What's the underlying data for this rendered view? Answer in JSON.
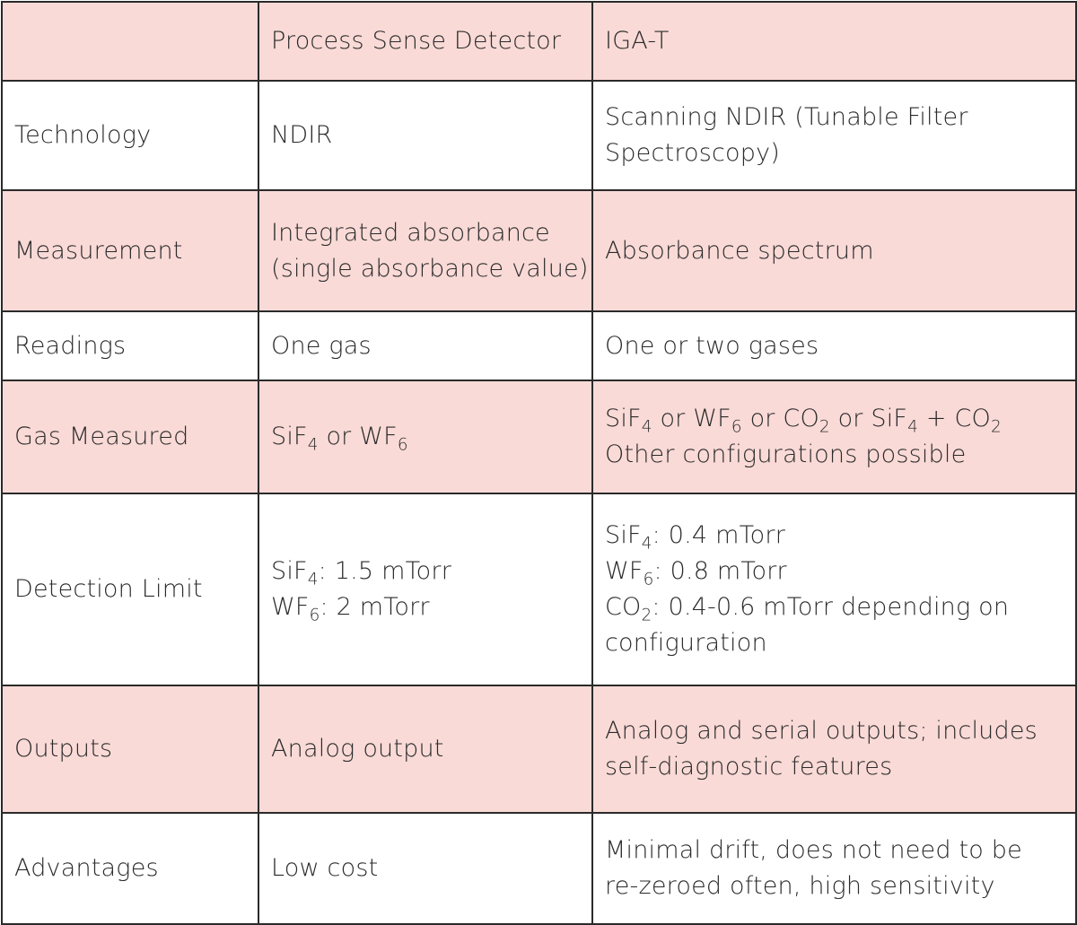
{
  "table": {
    "header": {
      "col1": "",
      "col2": "Process Sense Detector",
      "col3": "IGA-T"
    },
    "technology": {
      "label": "Technology",
      "psd": "NDIR",
      "igat_line1": "Scanning NDIR (Tunable Filter",
      "igat_line2": "Spectroscopy)"
    },
    "measurement": {
      "label": "Measurement",
      "psd_line1": "Integrated absorbance",
      "psd_line2": "(single absorbance value)",
      "igat": "Absorbance spectrum"
    },
    "readings": {
      "label": "Readings",
      "psd": "One gas",
      "igat": "One or two gases"
    },
    "gas_measured": {
      "label": "Gas Measured",
      "psd": {
        "g1": "SiF",
        "g1_sub": "4",
        "sep": " or ",
        "g2": "WF",
        "g2_sub": "6"
      },
      "igat": {
        "g1": "SiF",
        "g1_sub": "4",
        "sep1": " or ",
        "g2": "WF",
        "g2_sub": "6",
        "sep2": " or ",
        "g3": "CO",
        "g3_sub": "2",
        "sep3": " or ",
        "g4": "SiF",
        "g4_sub": "4",
        "sep4": " + ",
        "g5": "CO",
        "g5_sub": "2",
        "line2": "Other configurations possible"
      }
    },
    "detection_limit": {
      "label": "Detection Limit",
      "psd": {
        "l1_gas": "SiF",
        "l1_sub": "4",
        "l1_val": ": 1.5 mTorr",
        "l2_gas": "WF",
        "l2_sub": "6",
        "l2_val": ": 2 mTorr"
      },
      "igat": {
        "l1_gas": "SiF",
        "l1_sub": "4",
        "l1_val": ": 0.4 mTorr",
        "l2_gas": "WF",
        "l2_sub": "6",
        "l2_val": ": 0.8 mTorr",
        "l3_gas": "CO",
        "l3_sub": "2",
        "l3_val": ": 0.4-0.6 mTorr depending on",
        "l4": "configuration"
      }
    },
    "outputs": {
      "label": "Outputs",
      "psd": "Analog output",
      "igat_line1": "Analog and serial outputs; includes",
      "igat_line2": "self-diagnostic features"
    },
    "advantages": {
      "label": "Advantages",
      "psd": "Low cost",
      "igat_line1": "Minimal drift, does not need to be",
      "igat_line2": "re-zeroed often, high sensitivity"
    },
    "colors": {
      "shaded_row": "#f9dad7",
      "plain_row": "#ffffff",
      "border": "#2a2a2a",
      "text": "#2b2b2b"
    }
  }
}
